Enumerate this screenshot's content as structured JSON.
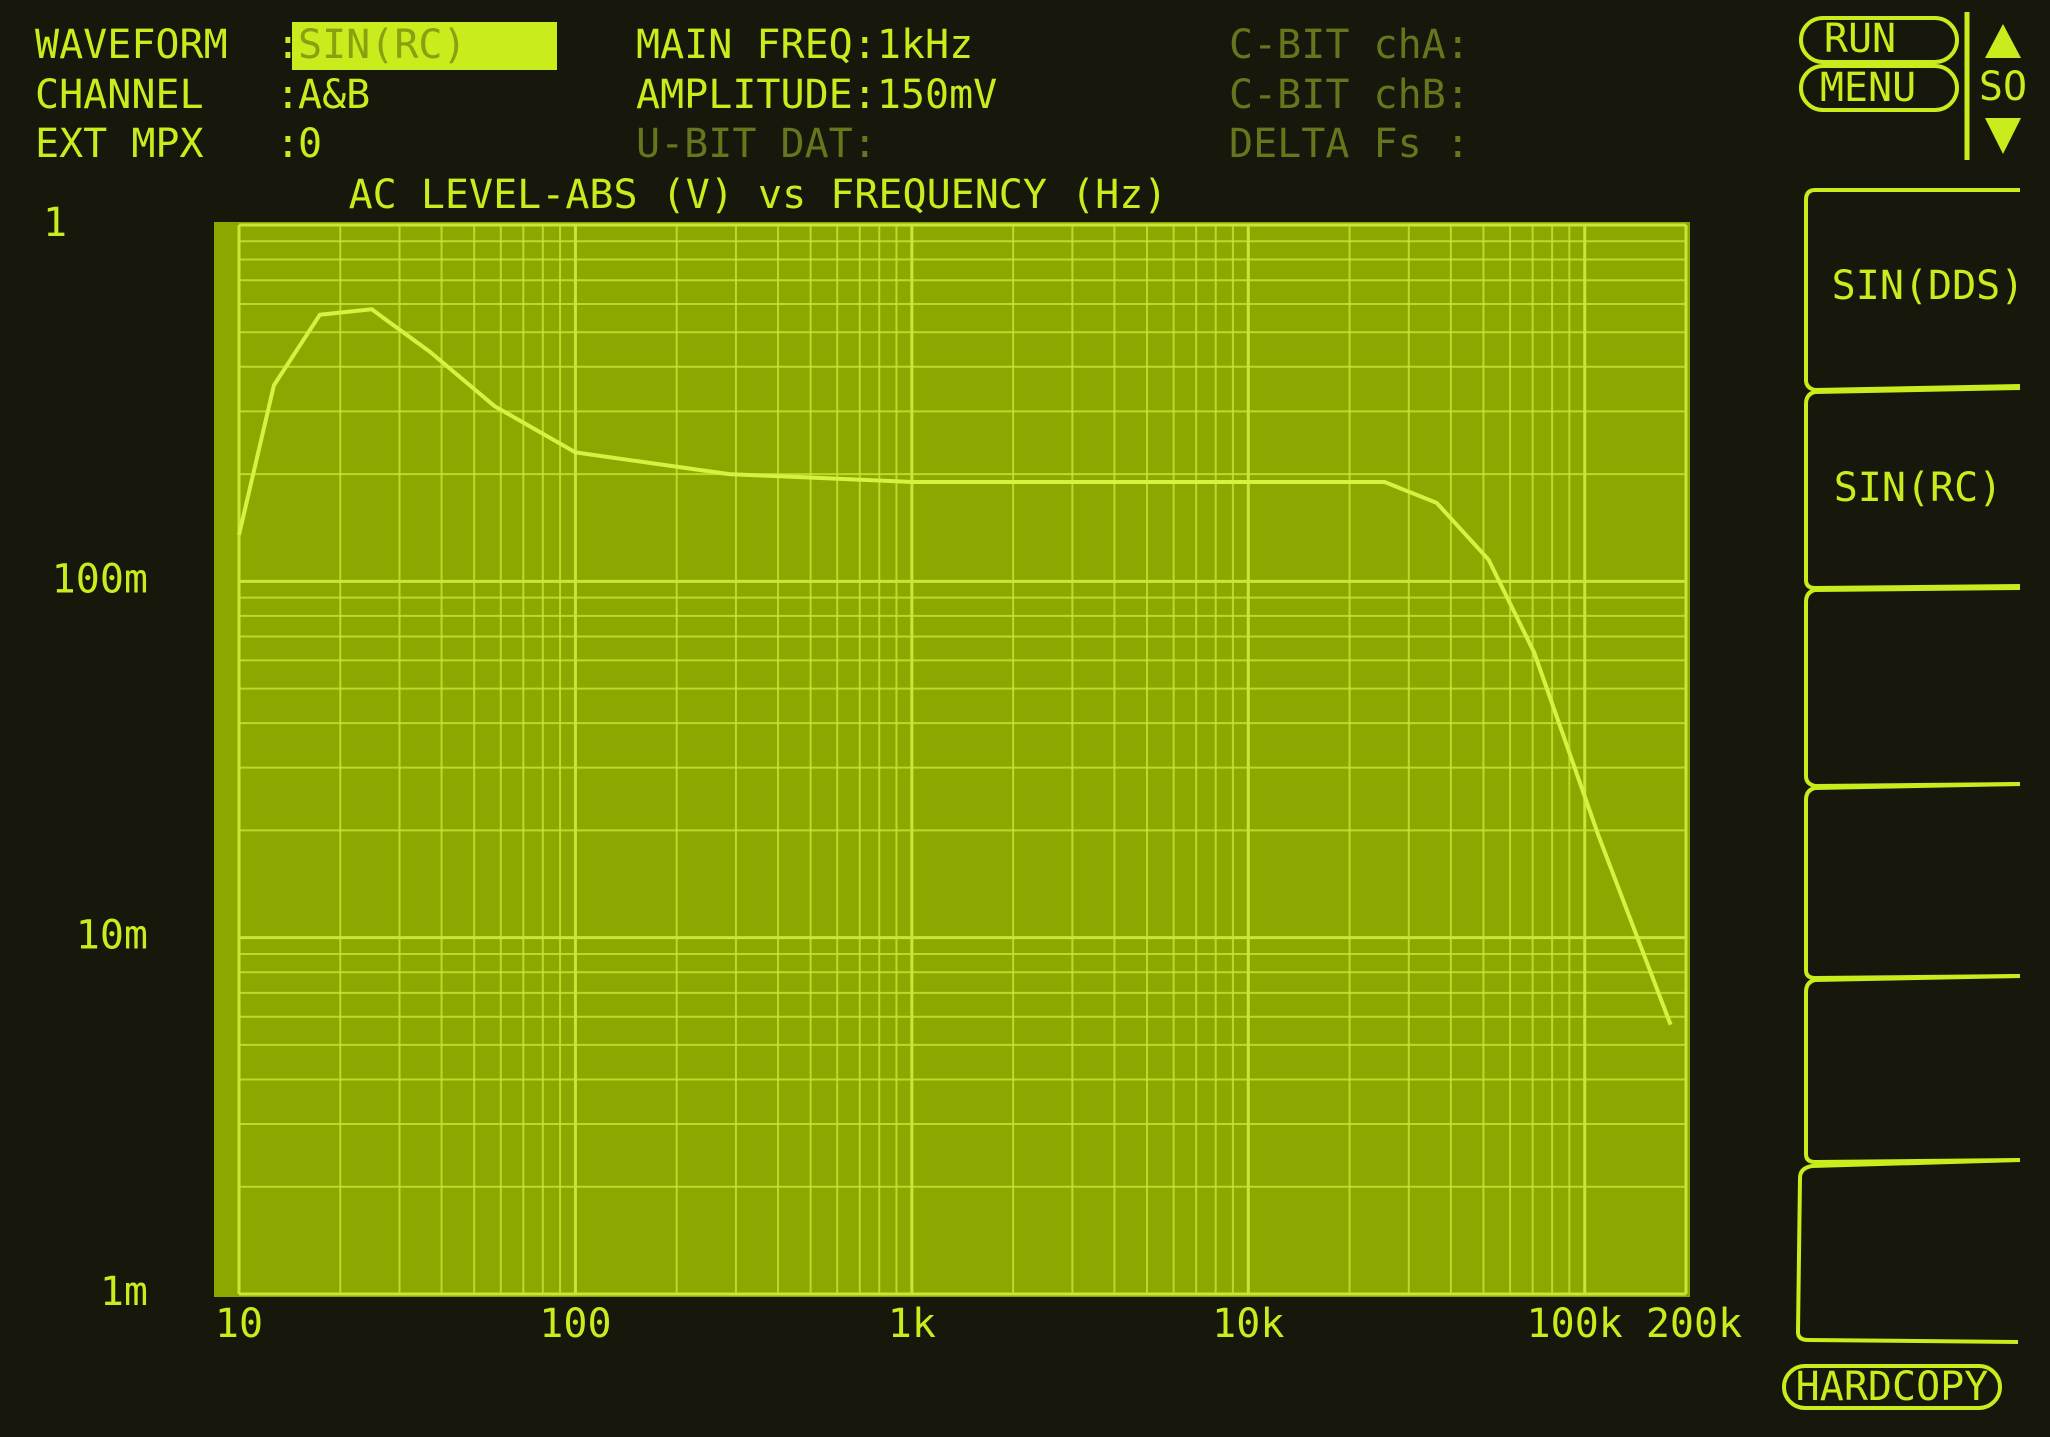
{
  "header": {
    "fields": [
      {
        "label": "WAVEFORM  :",
        "value": "SIN(RC)"
      },
      {
        "label": "CHANNEL   :",
        "value": "A&B"
      },
      {
        "label": "EXT MPX   :",
        "value": "0"
      }
    ],
    "settings": [
      "MAIN FREQ:1kHz",
      "AMPLITUDE:150mV",
      "U-BIT DAT:"
    ],
    "status": [
      "C-BIT chA:",
      "C-BIT chB:",
      "DELTA Fs :"
    ]
  },
  "controls": {
    "run": "RUN",
    "menu": "MENU",
    "scroll": "SO",
    "softkeys": [
      "SIN(DDS)",
      "SIN(RC)"
    ],
    "hardcopy": "HARDCOPY"
  },
  "chart_data": {
    "type": "line",
    "title": "AC LEVEL-ABS (V) vs FREQUENCY (Hz)",
    "xscale": "log",
    "yscale": "log",
    "grid": true,
    "color": "#d8f040",
    "x": [
      10,
      12.7,
      17.4,
      24.8,
      37,
      57.5,
      100,
      286,
      1000,
      14260,
      25400,
      36300,
      51800,
      70800,
      110000,
      180000
    ],
    "values": [
      0.135,
      0.355,
      0.56,
      0.58,
      0.44,
      0.31,
      0.23,
      0.2,
      0.19,
      0.19,
      0.19,
      0.166,
      0.115,
      0.063,
      0.0193,
      0.0057
    ],
    "xlim": [
      10,
      200000
    ],
    "xticks": [
      10,
      100,
      {
        "value": 1000,
        "label": "1k"
      },
      {
        "value": 10000,
        "label": "10k"
      },
      {
        "value": 100000,
        "label": "100k"
      },
      {
        "value": 200000,
        "label": "200k"
      }
    ],
    "ylim": [
      0.001,
      1
    ],
    "yticks": [
      {
        "value": 0.001,
        "label": "1m"
      },
      {
        "value": 0.01,
        "label": "10m"
      },
      {
        "value": 0.1,
        "label": "100m"
      },
      1
    ]
  }
}
